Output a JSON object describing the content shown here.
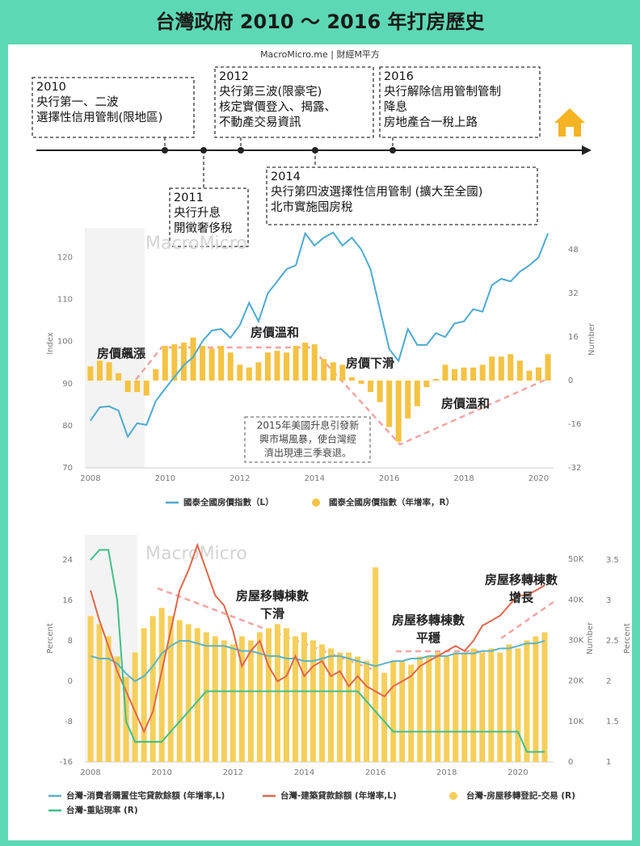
{
  "header": {
    "title": "台灣政府 2010 ～ 2016 年打房歷史",
    "source": "MacroMicro.me | 財經M平方"
  },
  "timeline": {
    "events": [
      {
        "lines": [
          "2010",
          "央行第一、二波",
          "選擇性信用管制(限地區)"
        ]
      },
      {
        "lines": [
          "2011",
          "央行升息",
          "開徵奢侈稅"
        ]
      },
      {
        "lines": [
          "2012",
          "央行第三波(限豪宅)",
          "核定實價登入、揭露、",
          "不動產交易資訊"
        ]
      },
      {
        "lines": [
          "2014",
          "央行第四波選擇性信用管制 (擴大至全國)",
          "北市實施囤房稅"
        ]
      },
      {
        "lines": [
          "2016",
          "央行解除信用管制管制",
          "降息",
          "房地產合一稅上路"
        ]
      }
    ]
  },
  "chart_data": [
    {
      "type": "line",
      "watermark": "MacroMicro",
      "y_label": "Index",
      "y2_label": "Number",
      "x": [
        2008,
        2008.25,
        2008.5,
        2008.75,
        2009,
        2009.25,
        2009.5,
        2009.75,
        2010,
        2010.25,
        2010.5,
        2010.75,
        2011,
        2011.25,
        2011.5,
        2011.75,
        2012,
        2012.25,
        2012.5,
        2012.75,
        2013,
        2013.25,
        2013.5,
        2013.75,
        2014,
        2014.25,
        2014.5,
        2014.75,
        2015,
        2015.25,
        2015.5,
        2015.75,
        2016,
        2016.25,
        2016.5,
        2016.75,
        2017,
        2017.25,
        2017.5,
        2017.75,
        2018,
        2018.25,
        2018.5,
        2018.75,
        2019,
        2019.25,
        2019.5,
        2019.75,
        2020,
        2020.25
      ],
      "xlim": [
        2007.85,
        2020.4
      ],
      "xticks": [
        2008,
        2010,
        2012,
        2014,
        2016,
        2018,
        2020
      ],
      "ylim": [
        70,
        127
      ],
      "yticks": [
        70,
        80,
        90,
        100,
        110,
        120
      ],
      "y2lim": [
        -32,
        56
      ],
      "y2ticks": [
        -32,
        -16,
        0,
        16,
        32,
        48
      ],
      "grid": false,
      "series": [
        {
          "name": "國泰全國房價指數（L）",
          "type": "line",
          "axis": "y",
          "color": "#4ea9d1",
          "values": [
            81.2,
            84.4,
            84.6,
            83.6,
            77.4,
            80.6,
            80.2,
            85.9,
            88.8,
            91.6,
            94.4,
            96.3,
            100.1,
            102.6,
            103,
            100.9,
            103.9,
            109.2,
            104.8,
            111.5,
            114.3,
            117.2,
            118.1,
            125.7,
            122.8,
            124.7,
            125.9,
            122.8,
            124.7,
            121.9,
            117.2,
            107.7,
            98.2,
            95.4,
            103,
            99.2,
            99.2,
            102,
            101.1,
            104.3,
            104.8,
            107.7,
            107.1,
            113.4,
            114.9,
            114.3,
            116.6,
            118.1,
            120,
            125.7
          ]
        },
        {
          "name": "國泰全國房價指數（年增率，R）",
          "type": "bar",
          "axis": "y2",
          "color": "#f5c242",
          "values": [
            5.2,
            7.3,
            6.7,
            2.7,
            -4.2,
            -4.2,
            -5.5,
            4.2,
            12.7,
            13.3,
            13.9,
            15.8,
            12.7,
            11.8,
            12.7,
            10.3,
            5.8,
            4.8,
            6.7,
            10.3,
            10.9,
            10.3,
            12.7,
            13.9,
            13.3,
            7.9,
            6.7,
            5.8,
            1.2,
            -1.2,
            -4.2,
            -7.9,
            -17,
            -22.4,
            -13.9,
            -9.4,
            -2.4,
            0.6,
            5.8,
            4.2,
            4.8,
            4.8,
            5.8,
            8.8,
            8.8,
            9.7,
            7.3,
            3.6,
            4.8,
            9.7
          ]
        }
      ],
      "annotations": [
        [
          "房價飆漲"
        ],
        [
          "房價溫和"
        ],
        [
          "房價下滑"
        ],
        [
          "房價溫和"
        ],
        [
          "2015年美國升息引發新",
          "興市場風暴，使台灣經",
          "濟出現連三季衰退。"
        ]
      ]
    },
    {
      "type": "line",
      "watermark": "MacroMicro",
      "y_label": "Percent",
      "y2_label": "Number",
      "y3_label": "Percent",
      "x": [
        2008,
        2008.25,
        2008.5,
        2008.75,
        2009,
        2009.25,
        2009.5,
        2009.75,
        2010,
        2010.25,
        2010.5,
        2010.75,
        2011,
        2011.25,
        2011.5,
        2011.75,
        2012,
        2012.25,
        2012.5,
        2012.75,
        2013,
        2013.25,
        2013.5,
        2013.75,
        2014,
        2014.25,
        2014.5,
        2014.75,
        2015,
        2015.25,
        2015.5,
        2015.75,
        2016,
        2016.25,
        2016.5,
        2016.75,
        2017,
        2017.25,
        2017.5,
        2017.75,
        2018,
        2018.25,
        2018.5,
        2018.75,
        2019,
        2019.25,
        2019.5,
        2019.75,
        2020,
        2020.25,
        2020.5,
        2020.75
      ],
      "xlim": [
        2007.84,
        2021
      ],
      "xticks": [
        2008,
        2010,
        2012,
        2014,
        2016,
        2018,
        2020
      ],
      "ylim": [
        -16,
        29
      ],
      "yticks": [
        -16,
        -8,
        0,
        8,
        16,
        24
      ],
      "y2lim": [
        0,
        56000
      ],
      "y2ticks": [
        0,
        {
          "value": 10000,
          "label": "10K"
        },
        {
          "value": 20000,
          "label": "20K"
        },
        {
          "value": 30000,
          "label": "30K"
        },
        {
          "value": 40000,
          "label": "40K"
        },
        {
          "value": 50000,
          "label": "50K"
        }
      ],
      "y3lim": [
        1,
        3.81
      ],
      "y3ticks": [
        1,
        1.5,
        2,
        2.5,
        3,
        3.5
      ],
      "grid": false,
      "series": [
        {
          "name": "台灣-消費者購置住宅貸款餘額 (年增率,L)",
          "type": "line",
          "axis": "y",
          "color": "#5bb3c4",
          "values": [
            5,
            4.5,
            4.5,
            3.5,
            1.5,
            0,
            1,
            3,
            5.5,
            7,
            8,
            8,
            7.5,
            7,
            7,
            7,
            6.5,
            6,
            6,
            5.5,
            5,
            5,
            4.5,
            4.5,
            4,
            4,
            4.5,
            5,
            5,
            4.5,
            4,
            3.5,
            3,
            3.5,
            4,
            4,
            4.5,
            4.5,
            5,
            5,
            5,
            5.5,
            5.5,
            5.5,
            6,
            6,
            6.5,
            6.5,
            7,
            7.5,
            7.5,
            8
          ]
        },
        {
          "name": "台灣-建築貸款餘額 (年增率,L)",
          "type": "line",
          "axis": "y",
          "color": "#e0674a",
          "values": [
            18,
            12,
            7,
            2,
            -2,
            -6,
            -10,
            -6,
            2,
            10,
            18,
            22,
            27,
            22,
            17,
            15,
            10,
            3,
            6,
            8,
            3,
            0,
            1,
            5,
            1,
            3,
            4,
            1,
            2,
            -1,
            1,
            -1,
            -2,
            -3,
            -1,
            0,
            1,
            3,
            4,
            5,
            6,
            7,
            6,
            8,
            11,
            12,
            13,
            15,
            17,
            17,
            18,
            19
          ]
        },
        {
          "name": "台灣-房屋移轉登記-交易 (R)",
          "type": "bar",
          "axis": "y2",
          "color": "#f6cf5a",
          "values": [
            36000,
            34000,
            31000,
            26000,
            21000,
            27000,
            33000,
            36000,
            38000,
            36000,
            35000,
            34000,
            33000,
            32000,
            31000,
            30000,
            29000,
            31000,
            30000,
            32000,
            33000,
            34000,
            33000,
            31000,
            32000,
            30000,
            29000,
            28000,
            27000,
            27000,
            26000,
            25000,
            48000,
            22000,
            25000,
            25000,
            24000,
            26000,
            26000,
            27000,
            26000,
            27000,
            27000,
            28000,
            27000,
            28000,
            27000,
            29000,
            28000,
            30000,
            31000,
            32000
          ]
        },
        {
          "name": "台灣-重貼現率 (R)",
          "type": "line",
          "axis": "y3",
          "color": "#3fbf8a",
          "values": [
            3.5,
            3.625,
            3.625,
            3,
            1.5,
            1.25,
            1.25,
            1.25,
            1.25,
            1.375,
            1.5,
            1.625,
            1.75,
            1.875,
            1.875,
            1.875,
            1.875,
            1.875,
            1.875,
            1.875,
            1.875,
            1.875,
            1.875,
            1.875,
            1.875,
            1.875,
            1.875,
            1.875,
            1.875,
            1.875,
            1.875,
            1.75,
            1.625,
            1.5,
            1.375,
            1.375,
            1.375,
            1.375,
            1.375,
            1.375,
            1.375,
            1.375,
            1.375,
            1.375,
            1.375,
            1.375,
            1.375,
            1.375,
            1.375,
            1.125,
            1.125,
            1.125
          ]
        }
      ],
      "annotations": [
        [
          "房屋移轉棟數",
          "下滑"
        ],
        [
          "房屋移轉棟數",
          "平穩"
        ],
        [
          "房屋移轉棟數",
          "增長"
        ]
      ]
    }
  ]
}
